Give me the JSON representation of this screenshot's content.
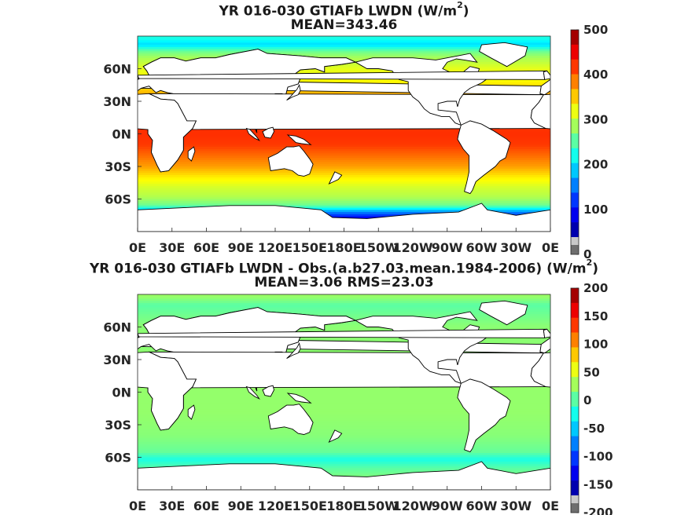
{
  "chart_data": [
    {
      "type": "heatmap",
      "title_text": "YR 016-030 GTIAFb LWDN (W/m",
      "title_sup": "2",
      "title_close": ")",
      "subtitle": "MEAN=343.46",
      "x_ticks": [
        "0E",
        "30E",
        "60E",
        "90E",
        "120E",
        "150E",
        "180E",
        "150W",
        "120W",
        "90W",
        "60W",
        "30W",
        "0E"
      ],
      "y_ticks": [
        "60N",
        "30N",
        "0N",
        "30S",
        "60S"
      ],
      "y_tick_lats": [
        60,
        30,
        0,
        -30,
        -60
      ],
      "colorbar": {
        "min": 0,
        "max": 500,
        "ticks": [
          "500",
          "400",
          "300",
          "200",
          "100",
          "0"
        ]
      },
      "zonal_profile": [
        {
          "lat": 88,
          "value": 200
        },
        {
          "lat": 82,
          "value": 170
        },
        {
          "lat": 76,
          "value": 240
        },
        {
          "lat": 70,
          "value": 270
        },
        {
          "lat": 60,
          "value": 300
        },
        {
          "lat": 50,
          "value": 310
        },
        {
          "lat": 40,
          "value": 340
        },
        {
          "lat": 30,
          "value": 375
        },
        {
          "lat": 20,
          "value": 390
        },
        {
          "lat": 10,
          "value": 410
        },
        {
          "lat": 0,
          "value": 415
        },
        {
          "lat": -10,
          "value": 410
        },
        {
          "lat": -20,
          "value": 385
        },
        {
          "lat": -30,
          "value": 360
        },
        {
          "lat": -40,
          "value": 320
        },
        {
          "lat": -50,
          "value": 290
        },
        {
          "lat": -58,
          "value": 275
        },
        {
          "lat": -66,
          "value": 240
        },
        {
          "lat": -72,
          "value": 130
        },
        {
          "lat": -78,
          "value": 50
        }
      ]
    },
    {
      "type": "heatmap",
      "title_text": "YR 016-030 GTIAFb LWDN - Obs.(a.b27.03.mean.1984-2006) (W/m",
      "title_sup": "2",
      "title_close": ")",
      "subtitle": "MEAN=3.06 RMS=23.03",
      "x_ticks": [
        "0E",
        "30E",
        "60E",
        "90E",
        "120E",
        "150E",
        "180E",
        "150W",
        "120W",
        "90W",
        "60W",
        "30W",
        "0E"
      ],
      "y_ticks": [
        "60N",
        "30N",
        "0N",
        "30S",
        "60S"
      ],
      "y_tick_lats": [
        60,
        30,
        0,
        -30,
        -60
      ],
      "colorbar": {
        "min": -200,
        "max": 200,
        "ticks": [
          "200",
          "150",
          "100",
          "50",
          "0",
          "-50",
          "-100",
          "-150",
          "-200"
        ]
      },
      "zonal_profile": [
        {
          "lat": 88,
          "value": 10
        },
        {
          "lat": 80,
          "value": -15
        },
        {
          "lat": 70,
          "value": -5
        },
        {
          "lat": 60,
          "value": 5
        },
        {
          "lat": 40,
          "value": 5
        },
        {
          "lat": 20,
          "value": 10
        },
        {
          "lat": 0,
          "value": 8
        },
        {
          "lat": -20,
          "value": 8
        },
        {
          "lat": -40,
          "value": 3
        },
        {
          "lat": -55,
          "value": -10
        },
        {
          "lat": -62,
          "value": -40
        },
        {
          "lat": -70,
          "value": -15
        },
        {
          "lat": -78,
          "value": 0
        }
      ]
    }
  ]
}
